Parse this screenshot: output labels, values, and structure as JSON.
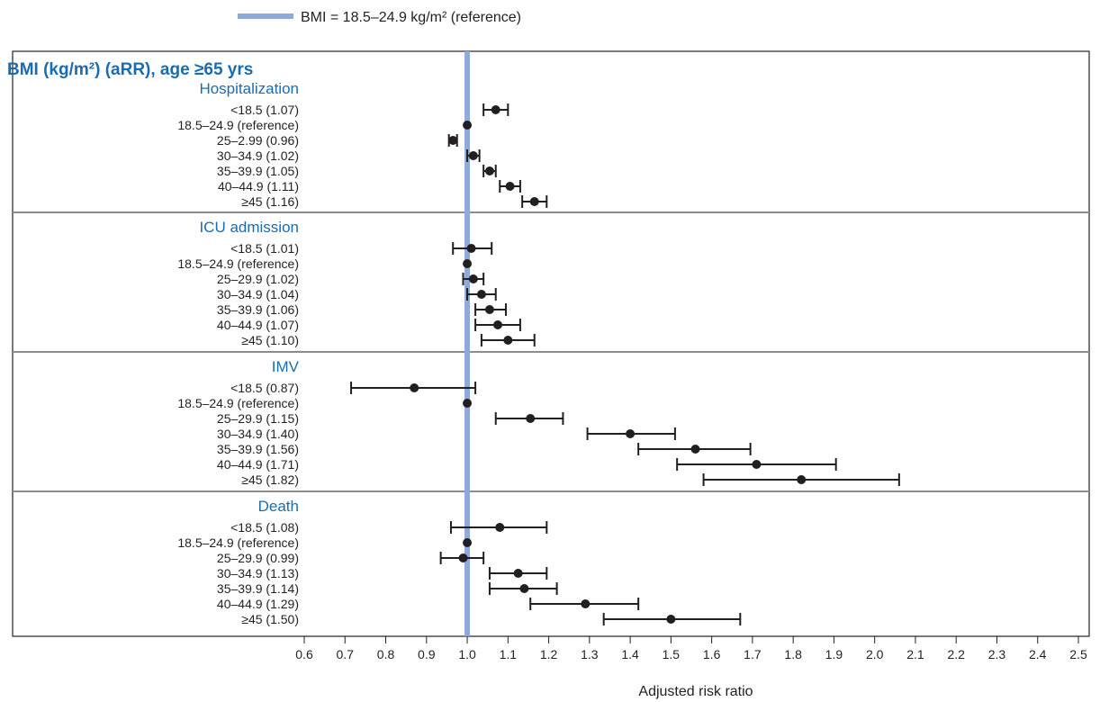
{
  "chart_data": {
    "type": "forest",
    "title": "BMI (kg/m²) (aRR), age ≥65 yrs",
    "xlabel": "Adjusted risk ratio",
    "xlim": [
      0.6,
      2.5
    ],
    "xticks": [
      "0.6",
      "0.7",
      "0.8",
      "0.9",
      "1.0",
      "1.1",
      "1.2",
      "1.3",
      "1.4",
      "1.5",
      "1.6",
      "1.7",
      "1.8",
      "1.9",
      "2.0",
      "2.1",
      "2.2",
      "2.3",
      "2.4",
      "2.5"
    ],
    "reference_value": 1.0,
    "reference_color": "#8eaadb",
    "point_color": "#231f20",
    "group_color": "#1a6bb0",
    "legend": {
      "label": "BMI = 18.5–24.9 kg/m² (reference)",
      "placement": "top"
    },
    "groups": [
      {
        "name": "Hospitalization",
        "rows": [
          {
            "label": "<18.5 (1.07)",
            "value": 1.07,
            "ci": [
              1.04,
              1.1
            ]
          },
          {
            "label": "18.5–24.9 (reference)",
            "value": 1.0,
            "ci": null
          },
          {
            "label": "25–2.99 (0.96)",
            "value": 0.965,
            "ci": [
              0.955,
              0.975
            ]
          },
          {
            "label": "30–34.9 (1.02)",
            "value": 1.015,
            "ci": [
              1.0,
              1.03
            ]
          },
          {
            "label": "35–39.9 (1.05)",
            "value": 1.055,
            "ci": [
              1.04,
              1.07
            ]
          },
          {
            "label": "40–44.9 (1.11)",
            "value": 1.105,
            "ci": [
              1.08,
              1.13
            ]
          },
          {
            "label": "≥45 (1.16)",
            "value": 1.165,
            "ci": [
              1.135,
              1.195
            ]
          }
        ]
      },
      {
        "name": "ICU admission",
        "rows": [
          {
            "label": "<18.5 (1.01)",
            "value": 1.01,
            "ci": [
              0.965,
              1.06
            ]
          },
          {
            "label": "18.5–24.9 (reference)",
            "value": 1.0,
            "ci": null
          },
          {
            "label": "25–29.9 (1.02)",
            "value": 1.015,
            "ci": [
              0.99,
              1.04
            ]
          },
          {
            "label": "30–34.9 (1.04)",
            "value": 1.035,
            "ci": [
              1.0,
              1.07
            ]
          },
          {
            "label": "35–39.9 (1.06)",
            "value": 1.055,
            "ci": [
              1.02,
              1.095
            ]
          },
          {
            "label": "40–44.9 (1.07)",
            "value": 1.075,
            "ci": [
              1.02,
              1.13
            ]
          },
          {
            "label": "≥45 (1.10)",
            "value": 1.1,
            "ci": [
              1.035,
              1.165
            ]
          }
        ]
      },
      {
        "name": "IMV",
        "rows": [
          {
            "label": "<18.5 (0.87)",
            "value": 0.87,
            "ci": [
              0.715,
              1.02
            ]
          },
          {
            "label": "18.5–24.9 (reference)",
            "value": 1.0,
            "ci": null
          },
          {
            "label": "25–29.9 (1.15)",
            "value": 1.155,
            "ci": [
              1.07,
              1.235
            ]
          },
          {
            "label": "30–34.9 (1.40)",
            "value": 1.4,
            "ci": [
              1.295,
              1.51
            ]
          },
          {
            "label": "35–39.9 (1.56)",
            "value": 1.56,
            "ci": [
              1.42,
              1.695
            ]
          },
          {
            "label": "40–44.9 (1.71)",
            "value": 1.71,
            "ci": [
              1.515,
              1.905
            ]
          },
          {
            "label": "≥45 (1.82)",
            "value": 1.82,
            "ci": [
              1.58,
              2.06
            ]
          }
        ]
      },
      {
        "name": "Death",
        "rows": [
          {
            "label": "<18.5 (1.08)",
            "value": 1.08,
            "ci": [
              0.96,
              1.195
            ]
          },
          {
            "label": "18.5–24.9 (reference)",
            "value": 1.0,
            "ci": null
          },
          {
            "label": "25–29.9 (0.99)",
            "value": 0.99,
            "ci": [
              0.935,
              1.04
            ]
          },
          {
            "label": "30–34.9 (1.13)",
            "value": 1.125,
            "ci": [
              1.055,
              1.195
            ]
          },
          {
            "label": "35–39.9 (1.14)",
            "value": 1.14,
            "ci": [
              1.055,
              1.22
            ]
          },
          {
            "label": "40–44.9 (1.29)",
            "value": 1.29,
            "ci": [
              1.155,
              1.42
            ]
          },
          {
            "label": "≥45 (1.50)",
            "value": 1.5,
            "ci": [
              1.335,
              1.67
            ]
          }
        ]
      }
    ]
  }
}
